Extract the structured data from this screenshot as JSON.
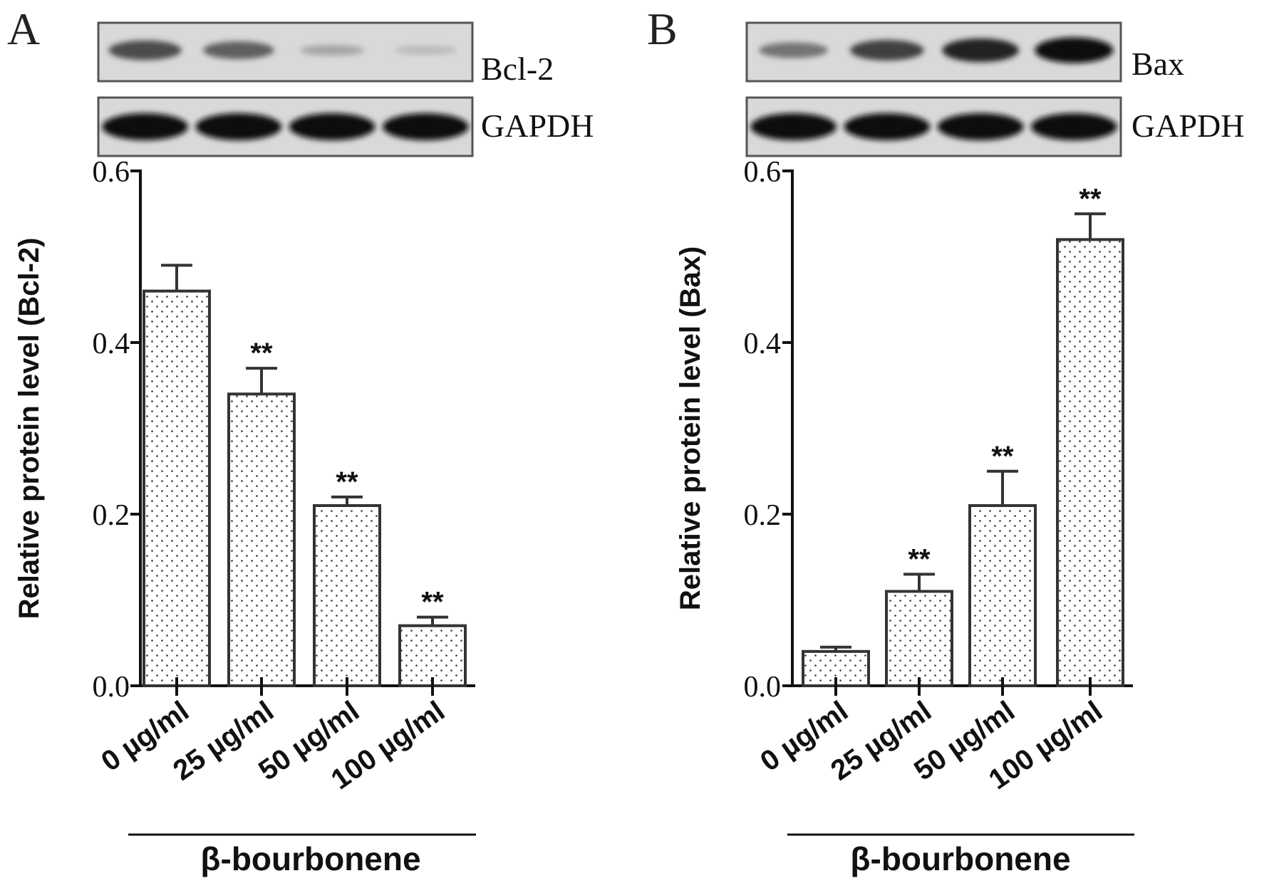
{
  "panels": [
    {
      "letter": "A",
      "blot_labels": [
        "Bcl-2",
        "GAPDH"
      ],
      "chart_data": {
        "type": "bar",
        "categories": [
          "0 µg/ml",
          "25 µg/ml",
          "50 µg/ml",
          "100 µg/ml"
        ],
        "values": [
          0.46,
          0.34,
          0.21,
          0.07
        ],
        "errors": [
          0.03,
          0.03,
          0.01,
          0.01
        ],
        "annotations": [
          "",
          "**",
          "**",
          "**"
        ],
        "ylabel": "Relative protein level (Bcl-2)",
        "xlabel": "β-bourbonene",
        "ylim": [
          0,
          0.6
        ],
        "yticks": [
          "0.0",
          "0.2",
          "0.4",
          "0.6"
        ],
        "pattern": "dotted",
        "grid": false
      },
      "blot_intensity": {
        "target": [
          0.7,
          0.6,
          0.25,
          0.15
        ],
        "control": [
          1,
          1,
          1,
          1
        ]
      }
    },
    {
      "letter": "B",
      "blot_labels": [
        "Bax",
        "GAPDH"
      ],
      "chart_data": {
        "type": "bar",
        "categories": [
          "0 µg/ml",
          "25 µg/ml",
          "50 µg/ml",
          "100 µg/ml"
        ],
        "values": [
          0.04,
          0.11,
          0.21,
          0.52
        ],
        "errors": [
          0.005,
          0.02,
          0.04,
          0.03
        ],
        "annotations": [
          "",
          "**",
          "**",
          "**"
        ],
        "ylabel": "Relative protein level (Bax)",
        "xlabel": "β-bourbonene",
        "ylim": [
          0,
          0.6
        ],
        "yticks": [
          "0.0",
          "0.2",
          "0.4",
          "0.6"
        ],
        "pattern": "dotted",
        "grid": false
      },
      "blot_intensity": {
        "target": [
          0.5,
          0.75,
          0.9,
          1.0
        ],
        "control": [
          1,
          1,
          1,
          1
        ]
      }
    }
  ]
}
